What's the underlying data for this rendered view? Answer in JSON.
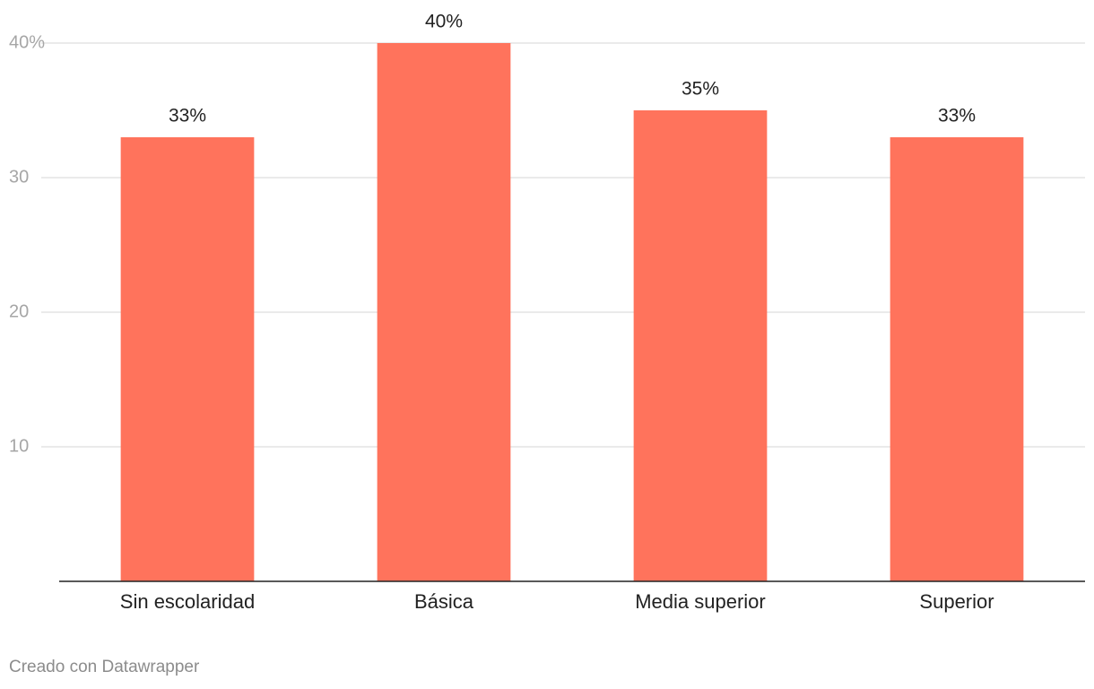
{
  "chart_data": {
    "type": "bar",
    "categories": [
      "Sin escolaridad",
      "Básica",
      "Media superior",
      "Superior"
    ],
    "values": [
      33,
      40,
      35,
      33
    ],
    "value_labels": [
      "33%",
      "40%",
      "35%",
      "33%"
    ],
    "color": "#ff735c",
    "ylim": [
      0,
      40
    ],
    "yticks": [
      10,
      20,
      30,
      {
        "value": 40,
        "label": "40%"
      }
    ],
    "grid": true,
    "credit": "Creado con Datawrapper"
  }
}
